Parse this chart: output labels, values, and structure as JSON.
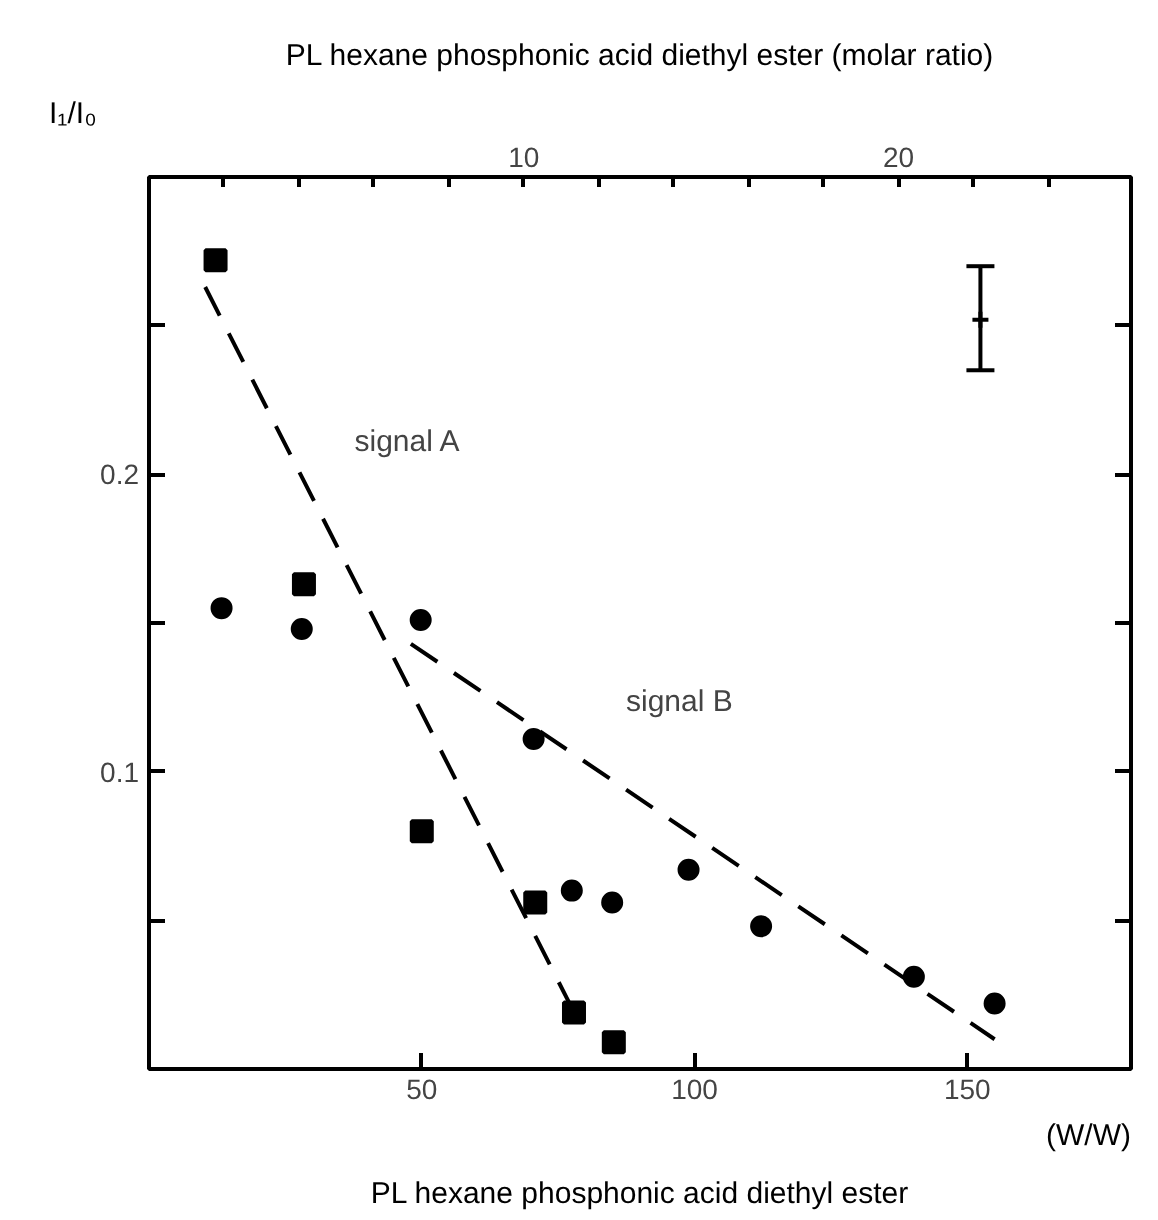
{
  "chart_data": {
    "type": "scatter",
    "xlabel": "PL hexane phosphonic acid diethyl ester",
    "x2label": "PL hexane phosphonic acid diethyl ester (molar ratio)",
    "ylabel": "I₁/I₀",
    "xlim": [
      0,
      180
    ],
    "xticks": [
      50,
      100,
      150
    ],
    "x2lim": [
      0,
      26.2
    ],
    "x2ticks": [
      {
        "value": 2,
        "label": null
      },
      {
        "value": 4,
        "label": null
      },
      {
        "value": 6,
        "label": null
      },
      {
        "value": 8,
        "label": null
      },
      10,
      {
        "value": 12,
        "label": null
      },
      {
        "value": 14,
        "label": null
      },
      {
        "value": 16,
        "label": null
      },
      {
        "value": 18,
        "label": null
      },
      20,
      {
        "value": 22,
        "label": null
      },
      {
        "value": 24,
        "label": null
      }
    ],
    "ylim": [
      0,
      0.3
    ],
    "yticks": [
      {
        "value": 0.05,
        "label": null
      },
      {
        "value": 0.1,
        "label": "0.1"
      },
      {
        "value": 0.15,
        "label": null
      },
      {
        "value": 0.2,
        "label": "0.2"
      },
      {
        "value": 0.25,
        "label": null
      }
    ],
    "grid": false,
    "series": [
      {
        "marker": "square",
        "color": "#000000",
        "x": [
          12.2,
          28.4,
          50,
          70.8,
          77.9,
          85.2
        ],
        "values": [
          0.272,
          0.163,
          0.08,
          0.056,
          0.019,
          0.009
        ]
      },
      {
        "marker": "circle",
        "color": "#000000",
        "x": [
          13.3,
          28.0,
          49.8,
          70.5,
          77.5,
          84.9,
          98.9,
          112.2,
          140.2,
          155
        ],
        "values": [
          0.155,
          0.148,
          0.151,
          0.111,
          0.06,
          0.056,
          0.067,
          0.048,
          0.031,
          0.022
        ]
      },
      {
        "type": "line",
        "line_style": "dashed",
        "color": "#000000",
        "x": [
          10.3,
          77.1
        ],
        "values": [
          0.263,
          0.022
        ]
      },
      {
        "type": "line",
        "line_style": "dashed",
        "color": "#000000",
        "x": [
          48,
          155
        ],
        "values": [
          0.143,
          0.01
        ]
      },
      {
        "marker": "cross",
        "color": "#000000",
        "x": [
          152.4
        ],
        "values": [
          0.252
        ],
        "errors": [
          [
            0.235,
            0.27
          ]
        ]
      }
    ],
    "annotations": [
      "signal A",
      "signal B",
      "(W/W)"
    ]
  }
}
